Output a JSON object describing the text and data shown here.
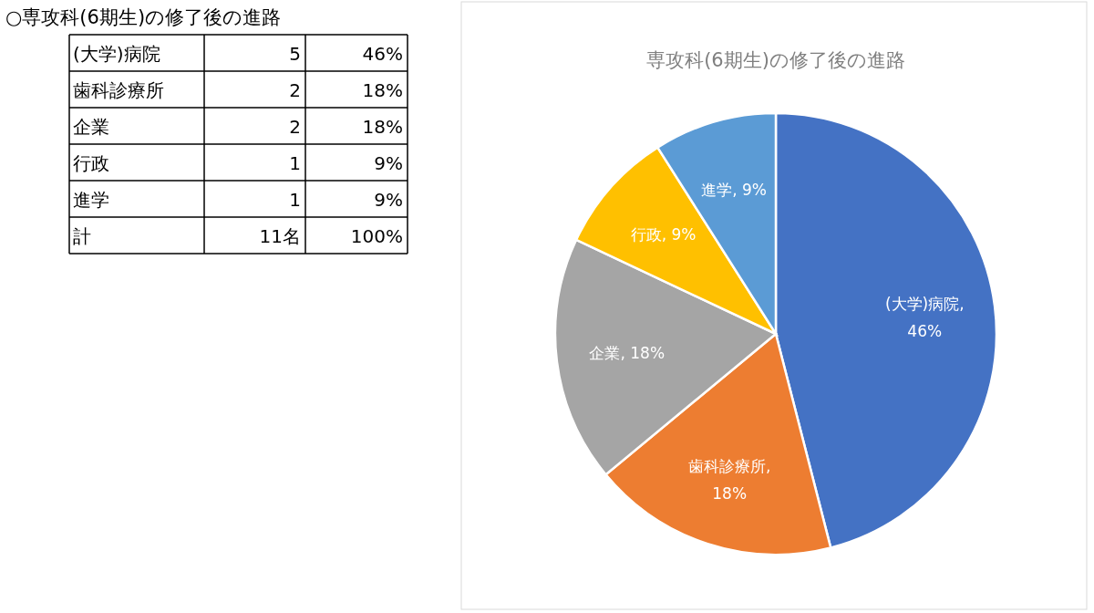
{
  "chart_data": [
    {
      "type": "other",
      "title": "○専攻科(6期生)の修了後の進路",
      "annotations": [
        "(大学)病院",
        "5",
        "46%",
        "歯科診療所",
        "2",
        "18%",
        "企業",
        "2",
        "18%",
        "行政",
        "1",
        "9%",
        "進学",
        "1",
        "9%",
        "計",
        "11名",
        "100%"
      ]
    },
    {
      "type": "pie",
      "title": "専攻科(6期生)の修了後の進路",
      "categories": [
        "(大学)病院",
        "歯科診療所",
        "企業",
        "行政",
        "進学"
      ],
      "values": [
        46,
        18,
        18,
        9,
        9
      ],
      "value_labels": [
        ", 46%",
        ", 18%",
        ", 18%",
        ", 9%",
        ", 9%"
      ],
      "colors": [
        "#4472c4",
        "#ed7d31",
        "#a5a5a5",
        "#ffc000",
        "#5b9bd5"
      ]
    }
  ]
}
